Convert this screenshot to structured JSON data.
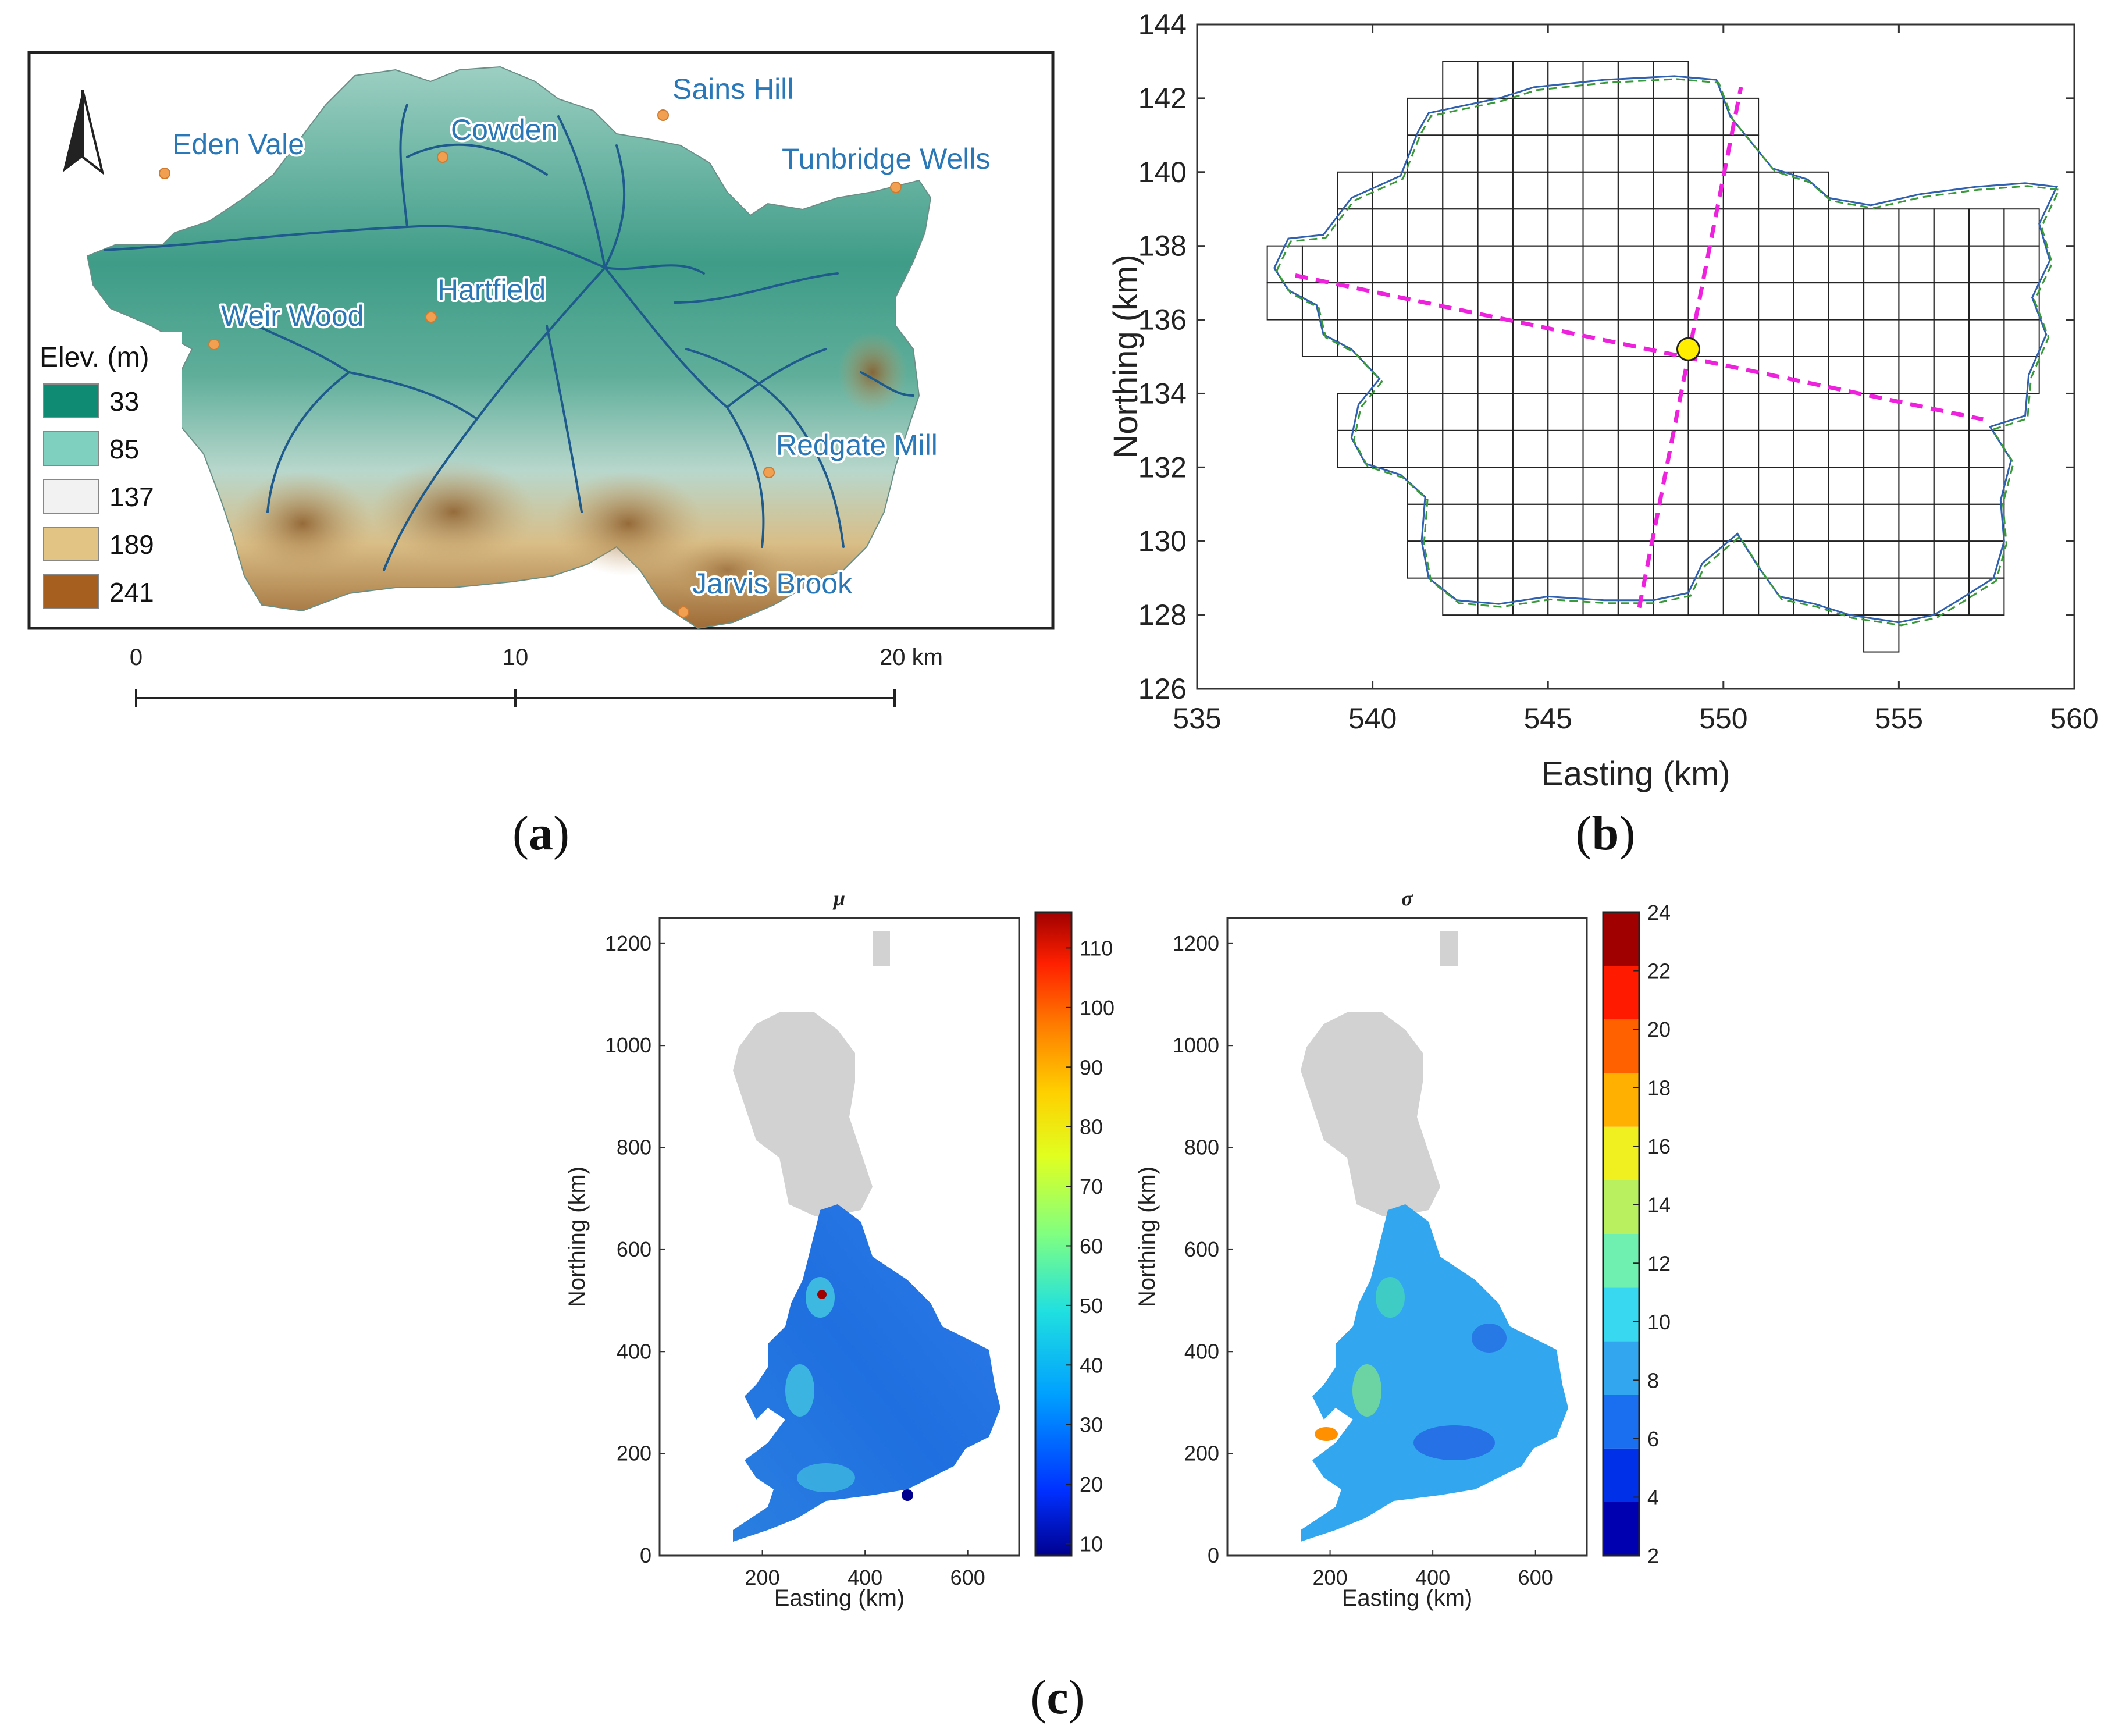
{
  "figure": {
    "panel_a": {
      "label_text": "a",
      "legend_title": "Elev. (m)",
      "legend_items": [
        {
          "value": "33",
          "color": "#0f8a73"
        },
        {
          "value": "85",
          "color": "#7fd0bf"
        },
        {
          "value": "137",
          "color": "#f2f2f2"
        },
        {
          "value": "189",
          "color": "#e2c485"
        },
        {
          "value": "241",
          "color": "#a65f1e"
        }
      ],
      "places": [
        "Sains Hill",
        "Eden Vale",
        "Cowden",
        "Tunbridge Wells",
        "Hartfield",
        "Weir Wood",
        "Redgate Mill",
        "Jarvis Brook"
      ],
      "scale_labels": [
        "0",
        "10",
        "20 km"
      ],
      "north_arrow": "north-arrow-icon",
      "colors": {
        "place_text": "#2a78b8",
        "place_dot": "#f0a050",
        "river": "#1f5a8c",
        "border": "#222222"
      }
    },
    "panel_b": {
      "label_text": "b",
      "colors": {
        "grid": "#222222",
        "outline_blue": "#3060b0",
        "outline_green": "#3a9a3a",
        "transect": "#ee22dd",
        "marker": "#ffee00"
      }
    },
    "panel_c": {
      "label_text": "c",
      "colors": {
        "land_gray": "#d2d2d2"
      },
      "maps": [
        {
          "title": "μ",
          "colorbar_ticks": [
            "110",
            "100",
            "90",
            "80",
            "70",
            "60",
            "50",
            "40",
            "30",
            "20",
            "10"
          ]
        },
        {
          "title": "σ",
          "colorbar_ticks": [
            "24",
            "22",
            "20",
            "18",
            "16",
            "14",
            "12",
            "10",
            "8",
            "6",
            "4",
            "2"
          ]
        }
      ]
    }
  },
  "chart_data": [
    {
      "type": "scatter",
      "title": "",
      "xlabel": "Easting (km)",
      "ylabel": "Northing (km)",
      "xlim": [
        535,
        560
      ],
      "ylim": [
        126,
        144
      ],
      "xticks": [
        535,
        540,
        545,
        550,
        555,
        560
      ],
      "yticks": [
        126,
        128,
        130,
        132,
        134,
        136,
        138,
        140,
        142,
        144
      ],
      "grid_cell_size_km": 1,
      "grid_rows": [
        {
          "y": 142,
          "x_from": 542,
          "x_to": 549
        },
        {
          "y": 141,
          "x_from": 541,
          "x_to": 551
        },
        {
          "y": 140,
          "x_from": 541,
          "x_to": 551
        },
        {
          "y": 139,
          "x_from": 539,
          "x_to": 553,
          "gap": [
            553,
            554
          ]
        },
        {
          "y": 138,
          "x_from": 539,
          "x_to": 559
        },
        {
          "y": 137,
          "x_from": 537,
          "x_to": 559
        },
        {
          "y": 136,
          "x_from": 537,
          "x_to": 559
        },
        {
          "y": 135,
          "x_from": 538,
          "x_to": 559
        },
        {
          "y": 134,
          "x_from": 540,
          "x_to": 559
        },
        {
          "y": 133,
          "x_from": 539,
          "x_to": 558
        },
        {
          "y": 132,
          "x_from": 539,
          "x_to": 558
        },
        {
          "y": 131,
          "x_from": 541,
          "x_to": 558
        },
        {
          "y": 130,
          "x_from": 541,
          "x_to": 558
        },
        {
          "y": 129,
          "x_from": 541,
          "x_to": 558
        },
        {
          "y": 128,
          "x_from": 542,
          "x_to": 558
        },
        {
          "y": 127,
          "x_from": 554,
          "x_to": 555
        }
      ],
      "transects": [
        {
          "name": "transect-1",
          "x": [
            537.8,
            557.4
          ],
          "y": [
            137.2,
            133.3
          ]
        },
        {
          "name": "transect-2",
          "x": [
            547.6,
            550.5
          ],
          "y": [
            128.2,
            142.3
          ]
        }
      ],
      "marker": {
        "x": 549.0,
        "y": 135.2
      },
      "catchment_outline": [
        [
          537.2,
          137.4
        ],
        [
          537.6,
          138.2
        ],
        [
          538.6,
          138.3
        ],
        [
          539.4,
          139.3
        ],
        [
          540.8,
          139.9
        ],
        [
          541.3,
          141.1
        ],
        [
          541.6,
          141.6
        ],
        [
          542.6,
          141.8
        ],
        [
          543.6,
          142.0
        ],
        [
          544.6,
          142.3
        ],
        [
          546.6,
          142.5
        ],
        [
          548.6,
          142.6
        ],
        [
          549.8,
          142.5
        ],
        [
          550.2,
          141.5
        ],
        [
          550.8,
          140.8
        ],
        [
          551.4,
          140.1
        ],
        [
          552.4,
          139.8
        ],
        [
          553.0,
          139.3
        ],
        [
          554.2,
          139.1
        ],
        [
          555.6,
          139.4
        ],
        [
          557.2,
          139.6
        ],
        [
          558.6,
          139.7
        ],
        [
          559.5,
          139.6
        ],
        [
          559.0,
          138.6
        ],
        [
          559.3,
          137.6
        ],
        [
          558.8,
          136.6
        ],
        [
          559.2,
          135.6
        ],
        [
          558.7,
          134.5
        ],
        [
          558.6,
          133.4
        ],
        [
          557.6,
          133.1
        ],
        [
          558.2,
          132.2
        ],
        [
          557.9,
          131.1
        ],
        [
          558.0,
          130.0
        ],
        [
          557.7,
          129.0
        ],
        [
          556.7,
          128.4
        ],
        [
          556.0,
          128.0
        ],
        [
          555.0,
          127.8
        ],
        [
          553.6,
          128.0
        ],
        [
          552.6,
          128.3
        ],
        [
          551.6,
          128.5
        ],
        [
          551.0,
          129.3
        ],
        [
          550.4,
          130.2
        ],
        [
          549.4,
          129.4
        ],
        [
          549.0,
          128.6
        ],
        [
          548.0,
          128.4
        ],
        [
          546.6,
          128.4
        ],
        [
          545.0,
          128.5
        ],
        [
          543.6,
          128.3
        ],
        [
          542.4,
          128.4
        ],
        [
          541.6,
          129.0
        ],
        [
          541.4,
          130.0
        ],
        [
          541.5,
          131.2
        ],
        [
          540.8,
          131.8
        ],
        [
          539.8,
          132.1
        ],
        [
          539.4,
          132.8
        ],
        [
          539.6,
          133.7
        ],
        [
          540.2,
          134.4
        ],
        [
          539.4,
          135.2
        ],
        [
          538.6,
          135.6
        ],
        [
          538.4,
          136.4
        ],
        [
          537.6,
          136.8
        ],
        [
          537.2,
          137.4
        ]
      ]
    },
    {
      "type": "heatmap",
      "title": "μ",
      "xlabel": "Easting (km)",
      "ylabel": "Northing (km)",
      "xlim": [
        0,
        700
      ],
      "ylim": [
        0,
        1250
      ],
      "xticks": [
        200,
        400,
        600
      ],
      "yticks": [
        0,
        200,
        400,
        600,
        800,
        1000,
        1200
      ],
      "colorbar_range": [
        8,
        116
      ]
    },
    {
      "type": "heatmap",
      "title": "σ",
      "xlabel": "Easting (km)",
      "ylabel": "Northing (km)",
      "xlim": [
        0,
        700
      ],
      "ylim": [
        0,
        1250
      ],
      "xticks": [
        200,
        400,
        600
      ],
      "yticks": [
        0,
        200,
        400,
        600,
        800,
        1000,
        1200
      ],
      "colorbar_range": [
        2,
        24
      ]
    }
  ]
}
